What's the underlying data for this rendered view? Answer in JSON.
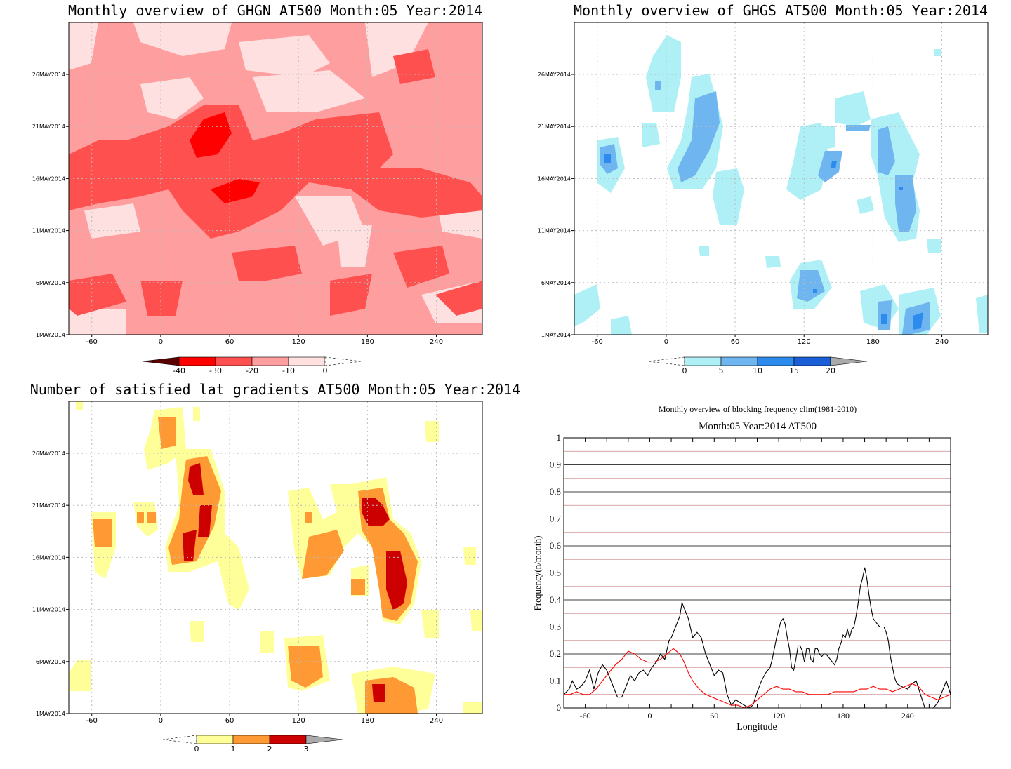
{
  "chart_data": [
    {
      "type": "heatmap",
      "title": "Monthly overview of GHGN AT500 Month:05 Year:2014",
      "x_ticks": [
        "-60",
        "0",
        "60",
        "120",
        "180",
        "240"
      ],
      "y_ticks": [
        "1MAY2014",
        "6MAY2014",
        "11MAY2014",
        "16MAY2014",
        "21MAY2014",
        "26MAY2014"
      ],
      "xlim": [
        -80,
        280
      ],
      "colorbar": {
        "labels": [
          "-40",
          "-30",
          "-20",
          "-10",
          "0"
        ],
        "colors": [
          "#5a0000",
          "#ff0000",
          "#ff5050",
          "#ff9e9e",
          "#ffe0e0"
        ]
      }
    },
    {
      "type": "heatmap",
      "title": "Monthly overview of GHGS AT500 Month:05 Year:2014",
      "x_ticks": [
        "-60",
        "0",
        "60",
        "120",
        "180",
        "240"
      ],
      "y_ticks": [
        "1MAY2014",
        "6MAY2014",
        "11MAY2014",
        "16MAY2014",
        "21MAY2014",
        "26MAY2014"
      ],
      "xlim": [
        -80,
        280
      ],
      "colorbar": {
        "labels": [
          "0",
          "5",
          "10",
          "15",
          "20"
        ],
        "colors": [
          "#aef0f5",
          "#6fb5f0",
          "#2e8bee",
          "#1a5fd8",
          "#aaaaaa"
        ]
      }
    },
    {
      "type": "heatmap",
      "title": "Number of satisfied lat gradients AT500 Month:05 Year:2014",
      "x_ticks": [
        "-60",
        "0",
        "60",
        "120",
        "180",
        "240"
      ],
      "y_ticks": [
        "1MAY2014",
        "6MAY2014",
        "11MAY2014",
        "16MAY2014",
        "21MAY2014",
        "26MAY2014"
      ],
      "xlim": [
        -80,
        280
      ],
      "colorbar": {
        "labels": [
          "0",
          "1",
          "2",
          "3"
        ],
        "colors": [
          "#ffff99",
          "#ff9933",
          "#cc0000",
          "#aaaaaa"
        ]
      }
    },
    {
      "type": "line",
      "title": "Monthly overview of blocking frequency clim(1981-2010)",
      "subtitle": "Month:05 Year:2014  AT500",
      "xlabel": "Longitude",
      "ylabel": "Frequency(n/month)",
      "xlim": [
        -80,
        280
      ],
      "ylim": [
        0,
        1
      ],
      "x_ticks": [
        "-60",
        "0",
        "60",
        "120",
        "180",
        "240"
      ],
      "y_ticks": [
        "0",
        "0.1",
        "0.2",
        "0.3",
        "0.4",
        "0.5",
        "0.6",
        "0.7",
        "0.8",
        "0.9",
        "1"
      ],
      "series": [
        {
          "color": "#000000",
          "x": [
            -80,
            -75,
            -72,
            -68,
            -64,
            -60,
            -56,
            -52,
            -48,
            -44,
            -40,
            -36,
            -30,
            -26,
            -22,
            -18,
            -14,
            -10,
            -6,
            -2,
            2,
            6,
            10,
            14,
            18,
            20,
            24,
            28,
            30,
            32,
            36,
            40,
            44,
            48,
            52,
            56,
            60,
            64,
            68,
            72,
            76,
            80,
            84,
            88,
            92,
            96,
            100,
            104,
            108,
            112,
            114,
            116,
            118,
            120,
            122,
            124,
            126,
            128,
            130,
            132,
            134,
            136,
            138,
            140,
            142,
            144,
            146,
            148,
            150,
            152,
            154,
            156,
            158,
            160,
            162,
            164,
            166,
            168,
            170,
            172,
            174,
            176,
            178,
            180,
            182,
            184,
            186,
            188,
            190,
            192,
            194,
            196,
            198,
            200,
            202,
            204,
            206,
            208,
            210,
            212,
            214,
            216,
            218,
            220,
            222,
            224,
            226,
            228,
            230,
            234,
            240,
            244,
            248,
            252,
            256,
            260,
            264,
            268,
            272,
            276,
            280
          ],
          "y": [
            0.05,
            0.07,
            0.1,
            0.07,
            0.08,
            0.1,
            0.14,
            0.07,
            0.13,
            0.16,
            0.14,
            0.1,
            0.04,
            0.04,
            0.08,
            0.12,
            0.1,
            0.13,
            0.14,
            0.12,
            0.15,
            0.17,
            0.2,
            0.18,
            0.25,
            0.26,
            0.3,
            0.34,
            0.39,
            0.37,
            0.33,
            0.26,
            0.28,
            0.26,
            0.2,
            0.16,
            0.12,
            0.14,
            0.13,
            0.05,
            0.01,
            0.03,
            0.02,
            0.01,
            0.0,
            0.01,
            0.06,
            0.1,
            0.13,
            0.15,
            0.18,
            0.22,
            0.26,
            0.29,
            0.32,
            0.33,
            0.31,
            0.26,
            0.22,
            0.15,
            0.14,
            0.18,
            0.23,
            0.23,
            0.21,
            0.17,
            0.22,
            0.22,
            0.18,
            0.17,
            0.22,
            0.22,
            0.2,
            0.19,
            0.2,
            0.2,
            0.19,
            0.18,
            0.17,
            0.16,
            0.18,
            0.22,
            0.24,
            0.27,
            0.26,
            0.29,
            0.26,
            0.29,
            0.3,
            0.34,
            0.39,
            0.45,
            0.48,
            0.52,
            0.48,
            0.42,
            0.37,
            0.33,
            0.32,
            0.31,
            0.3,
            0.3,
            0.3,
            0.28,
            0.25,
            0.19,
            0.15,
            0.11,
            0.09,
            0.08,
            0.07,
            0.09,
            0.1,
            0.05,
            0.0,
            0.0,
            0.0,
            0.02,
            0.06,
            0.1,
            0.05
          ]
        },
        {
          "color": "#ff0000",
          "x": [
            -80,
            -74,
            -68,
            -62,
            -56,
            -50,
            -44,
            -38,
            -32,
            -26,
            -20,
            -14,
            -8,
            -2,
            4,
            10,
            16,
            22,
            28,
            32,
            36,
            40,
            46,
            52,
            58,
            64,
            70,
            76,
            82,
            88,
            94,
            100,
            106,
            112,
            118,
            124,
            130,
            136,
            142,
            148,
            154,
            160,
            166,
            172,
            178,
            184,
            190,
            196,
            202,
            208,
            214,
            220,
            226,
            232,
            238,
            244,
            250,
            256,
            262,
            268,
            274,
            280
          ],
          "y": [
            0.05,
            0.05,
            0.06,
            0.05,
            0.05,
            0.07,
            0.1,
            0.13,
            0.16,
            0.18,
            0.21,
            0.2,
            0.18,
            0.17,
            0.17,
            0.18,
            0.2,
            0.22,
            0.2,
            0.17,
            0.13,
            0.1,
            0.07,
            0.05,
            0.04,
            0.03,
            0.02,
            0.01,
            0.01,
            0.0,
            0.01,
            0.03,
            0.05,
            0.07,
            0.08,
            0.07,
            0.07,
            0.06,
            0.06,
            0.05,
            0.05,
            0.05,
            0.05,
            0.06,
            0.06,
            0.06,
            0.06,
            0.07,
            0.07,
            0.08,
            0.07,
            0.07,
            0.06,
            0.07,
            0.08,
            0.09,
            0.08,
            0.05,
            0.04,
            0.03,
            0.04,
            0.05
          ]
        }
      ]
    }
  ]
}
